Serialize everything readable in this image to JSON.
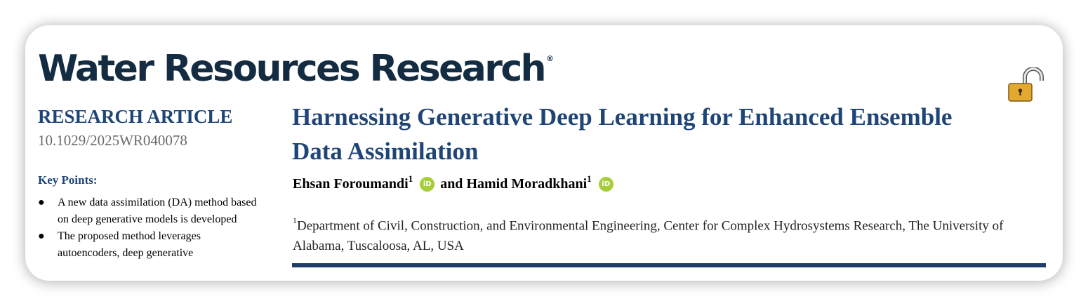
{
  "journal": {
    "name": "Water Resources Research",
    "mark": "®"
  },
  "article_type": "RESEARCH ARTICLE",
  "doi": "10.1029/2025WR040078",
  "key_points": {
    "title": "Key Points:",
    "items": [
      "A new data assimilation (DA) method based on deep generative models is developed",
      "The proposed method leverages autoencoders, deep generative"
    ]
  },
  "title": "Harnessing Generative Deep Learning for Enhanced Ensemble Data Assimilation",
  "authors": [
    {
      "name": "Ehsan Foroumandi",
      "affil": "1",
      "orcid_label": "iD"
    },
    {
      "conjunction": "and"
    },
    {
      "name": "Hamid Moradkhani",
      "affil": "1",
      "orcid_label": "iD"
    }
  ],
  "affiliation": {
    "marker": "1",
    "text": "Department of Civil, Construction, and Environmental Engineering, Center for Complex Hydrosystems Research, The University of Alabama, Tuscaloosa, AL, USA"
  },
  "colors": {
    "title_blue": "#1f4577",
    "journal_navy": "#132c42",
    "orcid_green": "#a6ce39",
    "rule": "#1f3d68",
    "lock": "#e3a82f"
  },
  "icons": {
    "open_access": "open-padlock-icon",
    "orcid": "orcid-icon"
  }
}
